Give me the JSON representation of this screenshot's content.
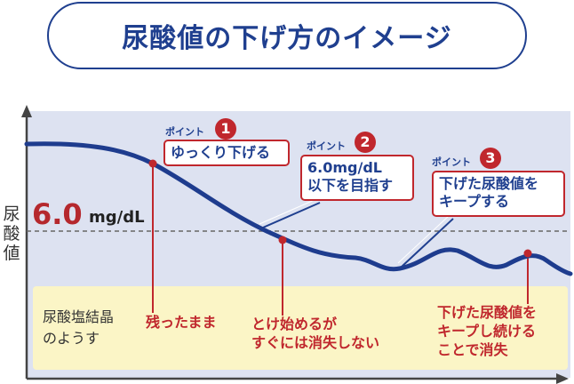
{
  "title": "尿酸値の下げ方のイメージ",
  "y_axis_label": "尿酸値",
  "threshold": {
    "value": "6.0",
    "unit": "mg/dL"
  },
  "crystal_area_label": "尿酸塩結晶\nのようす",
  "points": [
    {
      "tag": "ポイント",
      "number": "1",
      "text": "ゆっくり下げる"
    },
    {
      "tag": "ポイント",
      "number": "2",
      "text": "6.0mg/dL\n以下を目指す"
    },
    {
      "tag": "ポイント",
      "number": "3",
      "text": "下げた尿酸値を\nキープする"
    }
  ],
  "notes": [
    "残ったまま",
    "とけ始めるが\nすぐには消失しない",
    "下げた尿酸値を\nキープし続ける\nことで消失"
  ],
  "colors": {
    "navy": "#1f3f8f",
    "red": "#c0272d",
    "plot_bg": "#dde2f1",
    "crystal_bg": "#fbf5c6"
  }
}
